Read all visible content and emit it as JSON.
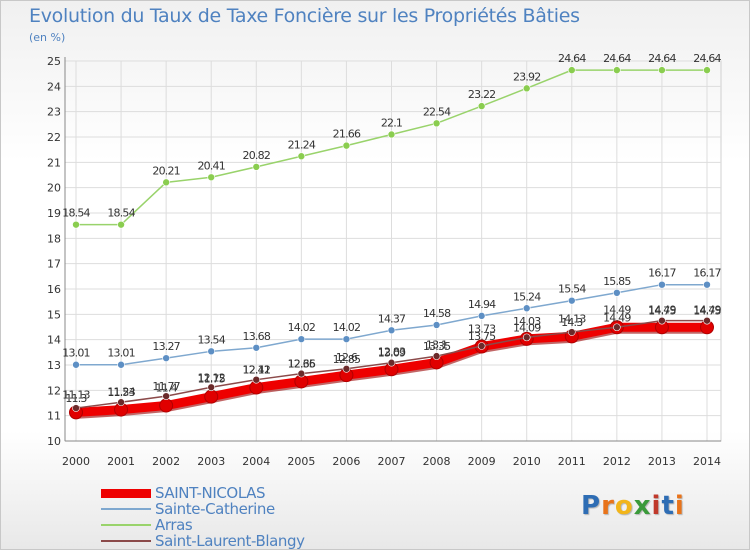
{
  "title": "Evolution du Taux de Taxe Foncière sur les Propriétés Bâties",
  "unit": "(en %)",
  "logo": {
    "text": "Proxiti",
    "letters": [
      "P",
      "r",
      "o",
      "x",
      "i",
      "t",
      "i"
    ],
    "colors": [
      "#2e6db4",
      "#e8731a",
      "#f2b51a",
      "#3a9a3a",
      "#c0392b",
      "#2e6db4",
      "#e8731a"
    ]
  },
  "chart_data": {
    "type": "line",
    "categories": [
      "2000",
      "2001",
      "2002",
      "2003",
      "2004",
      "2005",
      "2006",
      "2007",
      "2008",
      "2009",
      "2010",
      "2011",
      "2012",
      "2013",
      "2014"
    ],
    "ylim": [
      10,
      25
    ],
    "yticks": [
      10,
      11,
      12,
      13,
      14,
      15,
      16,
      17,
      18,
      19,
      20,
      21,
      22,
      23,
      24,
      25
    ],
    "grid": true,
    "series": [
      {
        "name": "SAINT-NICOLAS",
        "color": "#ee0000",
        "marker": "#e00000",
        "width": 9,
        "values": [
          11.13,
          11.24,
          11.4,
          11.75,
          12.11,
          12.35,
          12.6,
          12.83,
          13.1,
          13.73,
          14.03,
          14.13,
          14.49,
          14.49,
          14.49
        ],
        "labels": true
      },
      {
        "name": "Sainte-Catherine",
        "color": "#7fa8cf",
        "marker": "#5d8fc4",
        "width": 1.5,
        "values": [
          13.01,
          13.01,
          13.27,
          13.54,
          13.68,
          14.02,
          14.02,
          14.37,
          14.58,
          14.94,
          15.24,
          15.54,
          15.85,
          16.17,
          16.17
        ],
        "labels": true
      },
      {
        "name": "Arras",
        "color": "#99d36b",
        "marker": "#8acd4f",
        "width": 1.5,
        "values": [
          18.54,
          18.54,
          20.21,
          20.41,
          20.82,
          21.24,
          21.66,
          22.1,
          22.54,
          23.22,
          23.92,
          24.64,
          24.64,
          24.64,
          24.64
        ],
        "labels": true
      },
      {
        "name": "Saint-Laurent-Blangy",
        "color": "#8b4a4a",
        "marker": "#6b2a2a",
        "width": 1.5,
        "values": [
          11.3,
          11.53,
          11.77,
          12.12,
          12.42,
          12.66,
          12.85,
          13.09,
          13.35,
          13.75,
          14.09,
          14.3,
          14.49,
          14.75,
          14.75
        ],
        "labels": true
      }
    ]
  }
}
